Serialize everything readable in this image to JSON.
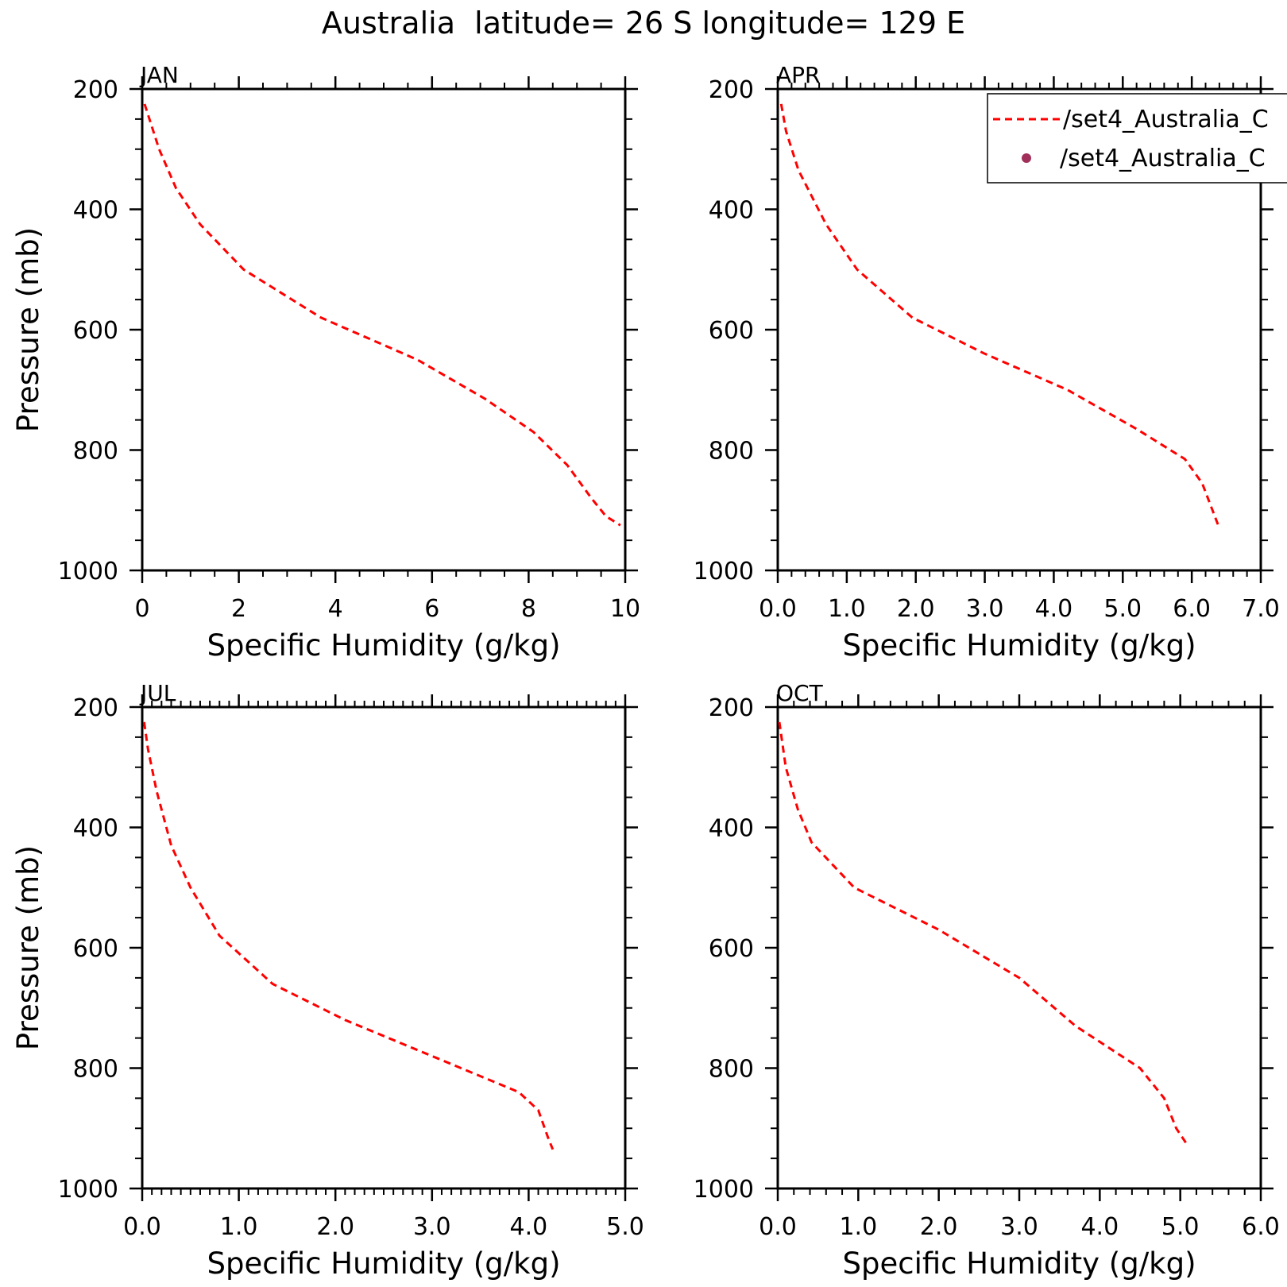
{
  "figure": {
    "title": "Australia  latitude= 26 S longitude= 129 E",
    "legend": {
      "entries": [
        {
          "label": "/set4_Australia_C",
          "style": "dashed-line",
          "color": "#ff0000"
        },
        {
          "label": "/set4_Australia_C",
          "style": "dot",
          "color": "#a0305a"
        }
      ]
    }
  },
  "colors": {
    "line": "#ff0000",
    "axis": "#000000",
    "marker": "#a0305a"
  },
  "chart_data": [
    {
      "type": "line",
      "title": "JAN",
      "xlabel": "Specific Humidity (g/kg)",
      "ylabel": "Pressure (mb)",
      "xlim": [
        0,
        10
      ],
      "ylim": [
        1000,
        200
      ],
      "y_inverted": true,
      "xticks": [
        "0",
        "2",
        "4",
        "6",
        "8",
        "10"
      ],
      "xtick_values": [
        0,
        2,
        4,
        6,
        8,
        10
      ],
      "yticks": [
        "200",
        "400",
        "600",
        "800",
        "1000"
      ],
      "grid": false,
      "series": [
        {
          "name": "/set4_Australia_C",
          "x": [
            0.05,
            0.15,
            0.35,
            0.7,
            1.2,
            2.1,
            3.7,
            5.7,
            7.1,
            8.1,
            8.8,
            9.3,
            9.6,
            9.9
          ],
          "y": [
            225,
            250,
            300,
            365,
            425,
            500,
            580,
            650,
            715,
            770,
            825,
            880,
            910,
            925
          ]
        }
      ]
    },
    {
      "type": "line",
      "title": "APR",
      "xlabel": "Specific Humidity (g/kg)",
      "ylabel": "",
      "xlim": [
        0,
        7
      ],
      "ylim": [
        1000,
        200
      ],
      "y_inverted": true,
      "xticks": [
        "0.0",
        "1.0",
        "2.0",
        "3.0",
        "4.0",
        "5.0",
        "6.0",
        "7.0"
      ],
      "xtick_values": [
        0,
        1,
        2,
        3,
        4,
        5,
        6,
        7
      ],
      "yticks": [
        "200",
        "400",
        "600",
        "800",
        "1000"
      ],
      "grid": false,
      "series": [
        {
          "name": "/set4_Australia_C",
          "x": [
            0.05,
            0.12,
            0.3,
            0.7,
            1.15,
            1.95,
            3.0,
            4.2,
            5.2,
            5.9,
            6.15,
            6.4
          ],
          "y": [
            225,
            270,
            335,
            425,
            500,
            580,
            640,
            700,
            765,
            815,
            855,
            930
          ]
        }
      ]
    },
    {
      "type": "line",
      "title": "JUL",
      "xlabel": "Specific Humidity (g/kg)",
      "ylabel": "Pressure (mb)",
      "xlim": [
        0,
        5
      ],
      "ylim": [
        1000,
        200
      ],
      "y_inverted": true,
      "xticks": [
        "0.0",
        "1.0",
        "2.0",
        "3.0",
        "4.0",
        "5.0"
      ],
      "xtick_values": [
        0,
        1,
        2,
        3,
        4,
        5
      ],
      "yticks": [
        "200",
        "400",
        "600",
        "800",
        "1000"
      ],
      "grid": false,
      "series": [
        {
          "name": "/set4_Australia_C",
          "x": [
            0.02,
            0.06,
            0.15,
            0.3,
            0.5,
            0.8,
            1.35,
            2.1,
            3.0,
            3.9,
            4.1,
            4.2,
            4.25
          ],
          "y": [
            225,
            270,
            340,
            430,
            500,
            580,
            660,
            720,
            780,
            840,
            870,
            915,
            935
          ]
        }
      ]
    },
    {
      "type": "line",
      "title": "OCT",
      "xlabel": "Specific Humidity (g/kg)",
      "ylabel": "",
      "xlim": [
        0,
        6
      ],
      "ylim": [
        1000,
        200
      ],
      "y_inverted": true,
      "xticks": [
        "0.0",
        "1.0",
        "2.0",
        "3.0",
        "4.0",
        "5.0",
        "6.0"
      ],
      "xtick_values": [
        0,
        1,
        2,
        3,
        4,
        5,
        6
      ],
      "yticks": [
        "200",
        "400",
        "600",
        "800",
        "1000"
      ],
      "grid": false,
      "series": [
        {
          "name": "/set4_Australia_C",
          "x": [
            0.02,
            0.1,
            0.25,
            0.42,
            0.95,
            2.0,
            3.0,
            3.7,
            4.5,
            4.8,
            4.95,
            5.1
          ],
          "y": [
            225,
            300,
            370,
            425,
            500,
            570,
            650,
            730,
            800,
            850,
            900,
            930
          ]
        }
      ]
    }
  ]
}
